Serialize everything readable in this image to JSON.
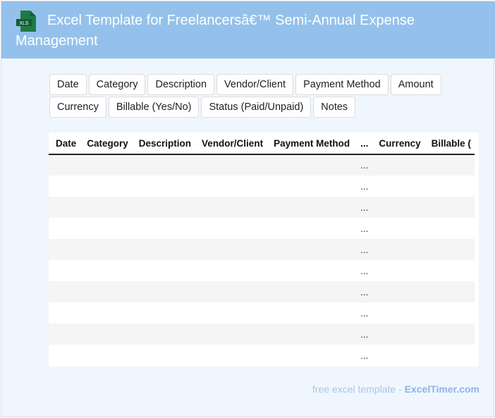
{
  "header": {
    "title_line1": "Excel Template for Freelancersâ€™ Semi-Annual Expense",
    "title_line2": "Management",
    "icon": "xls-file-icon",
    "icon_label": "XLS"
  },
  "chips": [
    "Date",
    "Category",
    "Description",
    "Vendor/Client",
    "Payment Method",
    "Amount",
    "Currency",
    "Billable (Yes/No)",
    "Status (Paid/Unpaid)",
    "Notes"
  ],
  "table": {
    "columns": [
      "Date",
      "Category",
      "Description",
      "Vendor/Client",
      "Payment Method",
      "...",
      "Currency",
      "Billable ("
    ],
    "rows": [
      [
        "",
        "",
        "",
        "",
        "",
        "...",
        "",
        ""
      ],
      [
        "",
        "",
        "",
        "",
        "",
        "...",
        "",
        ""
      ],
      [
        "",
        "",
        "",
        "",
        "",
        "...",
        "",
        ""
      ],
      [
        "",
        "",
        "",
        "",
        "",
        "...",
        "",
        ""
      ],
      [
        "",
        "",
        "",
        "",
        "",
        "...",
        "",
        ""
      ],
      [
        "",
        "",
        "",
        "",
        "",
        "...",
        "",
        ""
      ],
      [
        "",
        "",
        "",
        "",
        "",
        "...",
        "",
        ""
      ],
      [
        "",
        "",
        "",
        "",
        "",
        "...",
        "",
        ""
      ],
      [
        "",
        "",
        "",
        "",
        "",
        "...",
        "",
        ""
      ],
      [
        "",
        "",
        "",
        "",
        "",
        "...",
        "",
        ""
      ]
    ]
  },
  "footer": {
    "text": "free excel template - ",
    "brand": "ExcelTimer.com"
  }
}
